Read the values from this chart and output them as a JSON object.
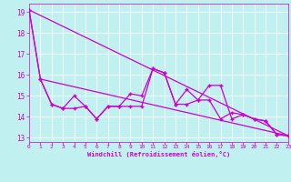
{
  "xlabel": "Windchill (Refroidissement éolien,°C)",
  "bg_color": "#c0f0f0",
  "line_color": "#cc00cc",
  "grid_color": "#a0d8d8",
  "xlim": [
    0,
    23
  ],
  "ylim": [
    12.8,
    19.4
  ],
  "xticks": [
    0,
    1,
    2,
    3,
    4,
    5,
    6,
    7,
    8,
    9,
    10,
    11,
    12,
    13,
    14,
    15,
    16,
    17,
    18,
    19,
    20,
    21,
    22,
    23
  ],
  "yticks": [
    13,
    14,
    15,
    16,
    17,
    18,
    19
  ],
  "series1_x": [
    0,
    1,
    2,
    3,
    4,
    5,
    6,
    7,
    8,
    9,
    10,
    11,
    12,
    13,
    14,
    15,
    16,
    17,
    18,
    19,
    20,
    21,
    22,
    23
  ],
  "series1_y": [
    19.1,
    15.8,
    14.6,
    14.4,
    15.0,
    14.5,
    13.9,
    14.5,
    14.5,
    15.1,
    15.0,
    16.3,
    16.1,
    14.6,
    15.3,
    14.8,
    14.8,
    13.9,
    14.2,
    14.1,
    13.9,
    13.8,
    13.15,
    13.1
  ],
  "series2_x": [
    0,
    1,
    2,
    3,
    4,
    5,
    6,
    7,
    8,
    9,
    10,
    11,
    12,
    13,
    14,
    15,
    16,
    17,
    18,
    19,
    20,
    21,
    22,
    23
  ],
  "series2_y": [
    19.1,
    15.8,
    14.6,
    14.4,
    14.4,
    14.5,
    13.9,
    14.5,
    14.5,
    14.5,
    14.5,
    16.3,
    16.1,
    14.6,
    14.6,
    14.8,
    15.5,
    15.5,
    13.9,
    14.1,
    13.9,
    13.8,
    13.15,
    13.1
  ],
  "trend1_x": [
    0,
    23
  ],
  "trend1_y": [
    19.1,
    13.1
  ],
  "trend2_x": [
    1,
    23
  ],
  "trend2_y": [
    15.8,
    13.1
  ]
}
